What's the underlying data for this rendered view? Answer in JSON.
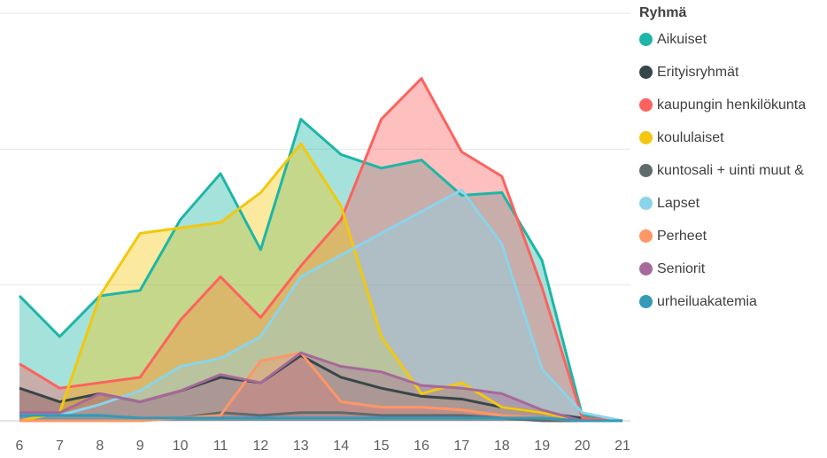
{
  "chart_data": {
    "type": "area",
    "legend_title": "Ryhmä",
    "legend_position": "right",
    "x": [
      6,
      7,
      8,
      9,
      10,
      11,
      12,
      13,
      14,
      15,
      16,
      17,
      18,
      19,
      20,
      21
    ],
    "ylim": [
      0,
      150
    ],
    "yticks_shown": false,
    "grid": true,
    "series": [
      {
        "name": "Aikuiset",
        "color": "#1db6a7",
        "values": [
          46,
          31,
          46,
          48,
          74,
          91,
          63,
          111,
          98,
          93,
          96,
          83,
          84,
          59,
          2,
          0
        ]
      },
      {
        "name": "Erityisryhmät",
        "color": "#374649",
        "values": [
          12,
          7,
          10,
          7,
          11,
          16,
          14,
          24,
          16,
          12,
          9,
          8,
          5,
          3,
          1,
          0
        ]
      },
      {
        "name": "kaupungin henkilökunta",
        "color": "#fd625e",
        "values": [
          21,
          12,
          14,
          16,
          37,
          53,
          38,
          57,
          74,
          111,
          126,
          99,
          90,
          49,
          1,
          0
        ]
      },
      {
        "name": "koululaiset",
        "color": "#f2c80f",
        "values": [
          0,
          3,
          46,
          69,
          71,
          73,
          84,
          102,
          79,
          31,
          10,
          14,
          5,
          3,
          0,
          0
        ]
      },
      {
        "name": "kuntosali + uinti muut &",
        "color": "#5f6b6d",
        "values": [
          0,
          0,
          0,
          0,
          1,
          3,
          2,
          3,
          3,
          2,
          2,
          2,
          1,
          0,
          0,
          0
        ]
      },
      {
        "name": "Lapset",
        "color": "#8ad4eb",
        "values": [
          3,
          2,
          6,
          11,
          20,
          23,
          31,
          53,
          61,
          69,
          77,
          85,
          65,
          19,
          3,
          0
        ]
      },
      {
        "name": "Perheet",
        "color": "#fe9666",
        "values": [
          0,
          0,
          0,
          0,
          1,
          2,
          22,
          25,
          7,
          5,
          5,
          4,
          2,
          1,
          0,
          0
        ]
      },
      {
        "name": "Seniorit",
        "color": "#a66999",
        "values": [
          3,
          3,
          10,
          7,
          11,
          17,
          14,
          25,
          20,
          18,
          13,
          12,
          10,
          4,
          0,
          0
        ]
      },
      {
        "name": "urheiluakatemia",
        "color": "#3599b8",
        "values": [
          2,
          2,
          2,
          1,
          1,
          1,
          1,
          1,
          1,
          1,
          1,
          1,
          1,
          1,
          0,
          0
        ]
      }
    ]
  }
}
